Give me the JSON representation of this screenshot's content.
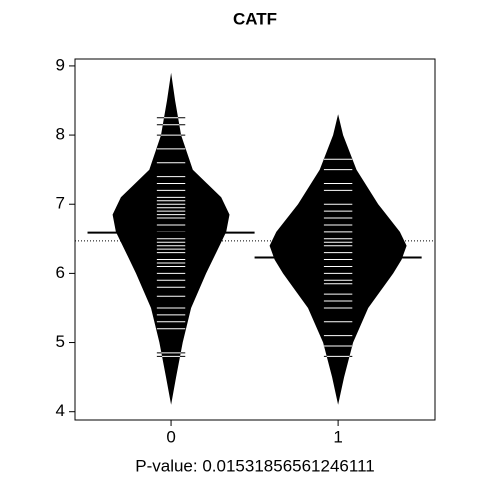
{
  "chart_data": {
    "type": "beanplot",
    "title": "CATF",
    "xlabel": "P-value: 0.01531856561246111",
    "categories": [
      "0",
      "1"
    ],
    "ylim": [
      3.88,
      9.1
    ],
    "yticks": [
      4,
      5,
      6,
      7,
      8,
      9
    ],
    "xlim": [
      -0.575,
      1.58
    ],
    "overall_mean": 6.47,
    "series": [
      {
        "name": "0",
        "color": "#000000",
        "median": 6.59,
        "density_y": [
          4.1,
          4.5,
          5.0,
          5.5,
          6.0,
          6.3,
          6.6,
          6.85,
          7.1,
          7.5,
          8.0,
          8.5,
          8.9
        ],
        "density_halfwidth": [
          0,
          0.03,
          0.07,
          0.12,
          0.21,
          0.27,
          0.33,
          0.35,
          0.3,
          0.13,
          0.06,
          0.024,
          0
        ],
        "observations": [
          8.25,
          8.15,
          8.0,
          7.8,
          7.6,
          7.4,
          7.3,
          7.2,
          7.1,
          7.05,
          7.0,
          6.95,
          6.9,
          6.85,
          6.8,
          6.7,
          6.6,
          6.5,
          6.45,
          6.4,
          6.35,
          6.3,
          6.2,
          6.15,
          6.1,
          6.0,
          5.9,
          5.8,
          5.67,
          5.5,
          5.4,
          5.3,
          5.2,
          4.85,
          4.8
        ]
      },
      {
        "name": "1",
        "color": "#000000",
        "median": 6.23,
        "density_y": [
          4.1,
          4.5,
          5.0,
          5.5,
          5.8,
          6.0,
          6.2,
          6.4,
          6.6,
          7.0,
          7.5,
          8.0,
          8.3
        ],
        "density_halfwidth": [
          0,
          0.036,
          0.09,
          0.18,
          0.27,
          0.33,
          0.38,
          0.41,
          0.37,
          0.24,
          0.11,
          0.03,
          0
        ],
        "observations": [
          7.65,
          7.5,
          7.3,
          7.2,
          7.0,
          6.9,
          6.8,
          6.7,
          6.6,
          6.5,
          6.45,
          6.4,
          6.3,
          6.2,
          6.1,
          6.0,
          5.9,
          5.85,
          5.7,
          5.6,
          5.5,
          5.3,
          5.1,
          4.95,
          4.8
        ]
      }
    ]
  }
}
